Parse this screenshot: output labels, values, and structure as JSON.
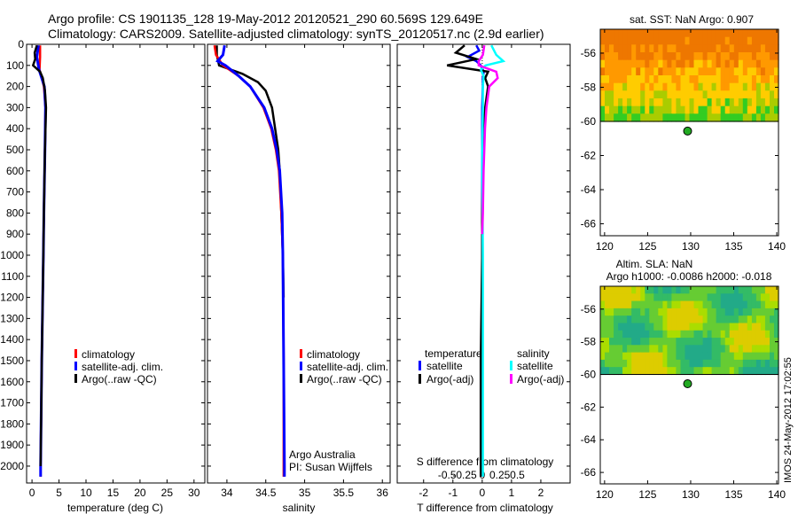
{
  "header": {
    "line1": "Argo profile: CS 1901135_128 19-May-2012 20120521_290 60.569S 129.649E",
    "line2": "Climatology: CARS2009. Satellite-adjusted climatology: synTS_20120517.nc (2.9d earlier)"
  },
  "colors": {
    "climatology": "#ff0000",
    "satellite": "#0000ff",
    "argo": "#000000",
    "sat_diff_S": "#00ffff",
    "argo_diff_S": "#ff00ff"
  },
  "chart_data": [
    {
      "type": "line",
      "id": "temperature",
      "xlabel": "temperature (deg C)",
      "xlim": [
        -1,
        32
      ],
      "ylim": [
        2080,
        0
      ],
      "x_ticks": [
        0,
        5,
        10,
        15,
        20,
        25,
        30
      ],
      "x_tick_labels": [
        "0",
        "5",
        "10",
        "15",
        "20",
        "25",
        "30"
      ],
      "y_ticks": [
        0,
        100,
        200,
        300,
        400,
        500,
        600,
        700,
        800,
        900,
        1000,
        1100,
        1200,
        1300,
        1400,
        1500,
        1600,
        1700,
        1800,
        1900,
        2000
      ],
      "legend": [
        "climatology",
        "satellite-adj. clim.",
        "Argo(..raw -QC)"
      ],
      "series": [
        {
          "name": "climatology",
          "depth": [
            5,
            60,
            120,
            200,
            300,
            500,
            800,
            1000,
            1500,
            2000,
            2050
          ],
          "values": [
            1.5,
            1.5,
            1.4,
            2.2,
            2.5,
            2.4,
            2.2,
            2.1,
            1.8,
            1.6,
            1.6
          ]
        },
        {
          "name": "satellite-adj. clim.",
          "depth": [
            5,
            60,
            120,
            200,
            300,
            500,
            800,
            1000,
            1500,
            2000,
            2050
          ],
          "values": [
            1.2,
            0.9,
            1.3,
            2.3,
            2.5,
            2.4,
            2.2,
            2.1,
            1.8,
            1.6,
            1.6
          ]
        },
        {
          "name": "Argo(..raw -QC)",
          "depth": [
            5,
            40,
            70,
            100,
            130,
            160,
            220,
            300,
            500,
            800,
            1000,
            1500,
            2000
          ],
          "values": [
            0.9,
            0.5,
            0.6,
            0.2,
            1.5,
            2.0,
            2.4,
            2.6,
            2.4,
            2.2,
            2.1,
            1.8,
            1.6
          ]
        }
      ]
    },
    {
      "type": "line",
      "id": "salinity",
      "xlabel": "salinity",
      "xlim": [
        33.75,
        36.1
      ],
      "ylim": [
        2080,
        0
      ],
      "x_ticks": [
        34,
        34.5,
        35,
        35.5,
        36
      ],
      "x_tick_labels": [
        "34",
        "34.5",
        "35",
        "35.5",
        "36"
      ],
      "legend": [
        "climatology",
        "satellite-adj. clim.",
        "Argo(..raw -QC)"
      ],
      "annotation": [
        "Argo Australia",
        "PI: Susan Wijffels"
      ],
      "series": [
        {
          "name": "climatology",
          "depth": [
            5,
            50,
            100,
            150,
            200,
            300,
            400,
            500,
            600,
            800,
            1000,
            1500,
            2000,
            2050
          ],
          "values": [
            33.84,
            33.86,
            33.95,
            34.15,
            34.3,
            34.47,
            34.57,
            34.63,
            34.67,
            34.7,
            34.72,
            34.73,
            34.73,
            34.73
          ]
        },
        {
          "name": "satellite-adj. clim.",
          "depth": [
            5,
            50,
            80,
            100,
            150,
            200,
            300,
            400,
            500,
            600,
            800,
            1000,
            1500,
            2000,
            2050
          ],
          "values": [
            33.97,
            33.95,
            33.88,
            33.98,
            34.15,
            34.3,
            34.48,
            34.58,
            34.64,
            34.68,
            34.71,
            34.72,
            34.73,
            34.74,
            34.74
          ]
        },
        {
          "name": "Argo(..raw -QC)",
          "depth": [
            5,
            50,
            100,
            140,
            180,
            220,
            300,
            400,
            500,
            600,
            800,
            1000,
            1200
          ],
          "values": [
            33.87,
            33.87,
            33.9,
            34.2,
            34.4,
            34.5,
            34.58,
            34.62,
            34.66,
            34.68,
            34.7,
            34.72,
            34.73
          ]
        }
      ]
    },
    {
      "type": "line",
      "id": "difference",
      "xlabel": "T difference from climatology",
      "x2label": "S difference from climatology",
      "xlim": [
        -2.9,
        3.0
      ],
      "ylim": [
        2080,
        0
      ],
      "x_ticks": [
        -2,
        -1,
        0,
        1,
        2
      ],
      "x_tick_labels": [
        "-2",
        "-1",
        "0",
        "1",
        "2"
      ],
      "x2_ticks": [
        -0.5,
        -0.25,
        0,
        0.25,
        0.5
      ],
      "x2_tick_labels": [
        "-0.5",
        "-0.25",
        "0",
        "0.25",
        "0.5"
      ],
      "legend_titles": [
        "temperature",
        "salinity"
      ],
      "legend_left": [
        "satellite",
        "Argo(-adj)"
      ],
      "legend_right": [
        "satellite",
        "Argo(-adj)"
      ],
      "series": [
        {
          "name": "T satellite",
          "depth": [
            5,
            30,
            60,
            80,
            100,
            130,
            160,
            200,
            300,
            500,
            1000,
            2050
          ],
          "values": [
            -0.2,
            -0.1,
            -0.5,
            -0.2,
            -0.05,
            0.05,
            0.02,
            0.02,
            0.0,
            0.0,
            0.0,
            0.0
          ]
        },
        {
          "name": "T Argo(-adj)",
          "depth": [
            5,
            40,
            70,
            100,
            130,
            160,
            200,
            250,
            300,
            500,
            800,
            1000,
            1500,
            2050
          ],
          "values": [
            -0.6,
            -0.9,
            -0.2,
            -1.2,
            0.2,
            0.1,
            0.2,
            0.15,
            0.1,
            0.02,
            0.0,
            0.0,
            -0.05,
            -0.05
          ]
        },
        {
          "name": "S satellite",
          "depth": [
            5,
            50,
            80,
            100,
            120,
            150,
            200,
            300,
            500,
            1000,
            2050
          ],
          "values": [
            0.13,
            0.2,
            0.3,
            0.05,
            -0.02,
            0.02,
            0.01,
            0.01,
            0.0,
            0.01,
            0.01
          ]
        },
        {
          "name": "S Argo(-adj)",
          "depth": [
            5,
            50,
            80,
            100,
            130,
            160,
            200,
            300,
            400,
            500,
            600,
            800,
            900
          ],
          "values": [
            0.03,
            0.01,
            -0.05,
            -0.05,
            0.2,
            0.22,
            0.1,
            0.06,
            0.04,
            0.03,
            0.02,
            0.01,
            0.0
          ]
        }
      ]
    },
    {
      "type": "heatmap",
      "id": "sst_map",
      "title": "sat. SST: NaN Argo: 0.907",
      "xlim": [
        119.5,
        140.2
      ],
      "ylim": [
        -66.7,
        -54.6
      ],
      "x_ticks": [
        120,
        125,
        130,
        135,
        140
      ],
      "x_tick_labels": [
        "120",
        "125",
        "130",
        "135",
        "140"
      ],
      "y_ticks": [
        -56,
        -58,
        -60,
        -62,
        -64,
        -66
      ],
      "y_tick_labels": [
        "-56",
        "-58",
        "-60",
        "-62",
        "-64",
        "-66"
      ],
      "data_lat_range": [
        -60,
        -54.6
      ],
      "argo_position": [
        129.649,
        -60.569
      ]
    },
    {
      "type": "heatmap",
      "id": "sla_map",
      "title": "Altim. SLA: NaN",
      "subtitle": "Argo h1000: -0.0086 h2000: -0.018",
      "xlim": [
        119.5,
        140.2
      ],
      "ylim": [
        -66.7,
        -54.6
      ],
      "x_ticks": [
        120,
        125,
        130,
        135,
        140
      ],
      "x_tick_labels": [
        "120",
        "125",
        "130",
        "135",
        "140"
      ],
      "y_ticks": [
        -56,
        -58,
        -60,
        -62,
        -64,
        -66
      ],
      "y_tick_labels": [
        "-56",
        "-58",
        "-60",
        "-62",
        "-64",
        "-66"
      ],
      "data_lat_range": [
        -60,
        -54.6
      ],
      "argo_position": [
        129.649,
        -60.569
      ]
    }
  ],
  "footer": {
    "stamp": "IMOS 24-May-2012 17:02:55"
  }
}
